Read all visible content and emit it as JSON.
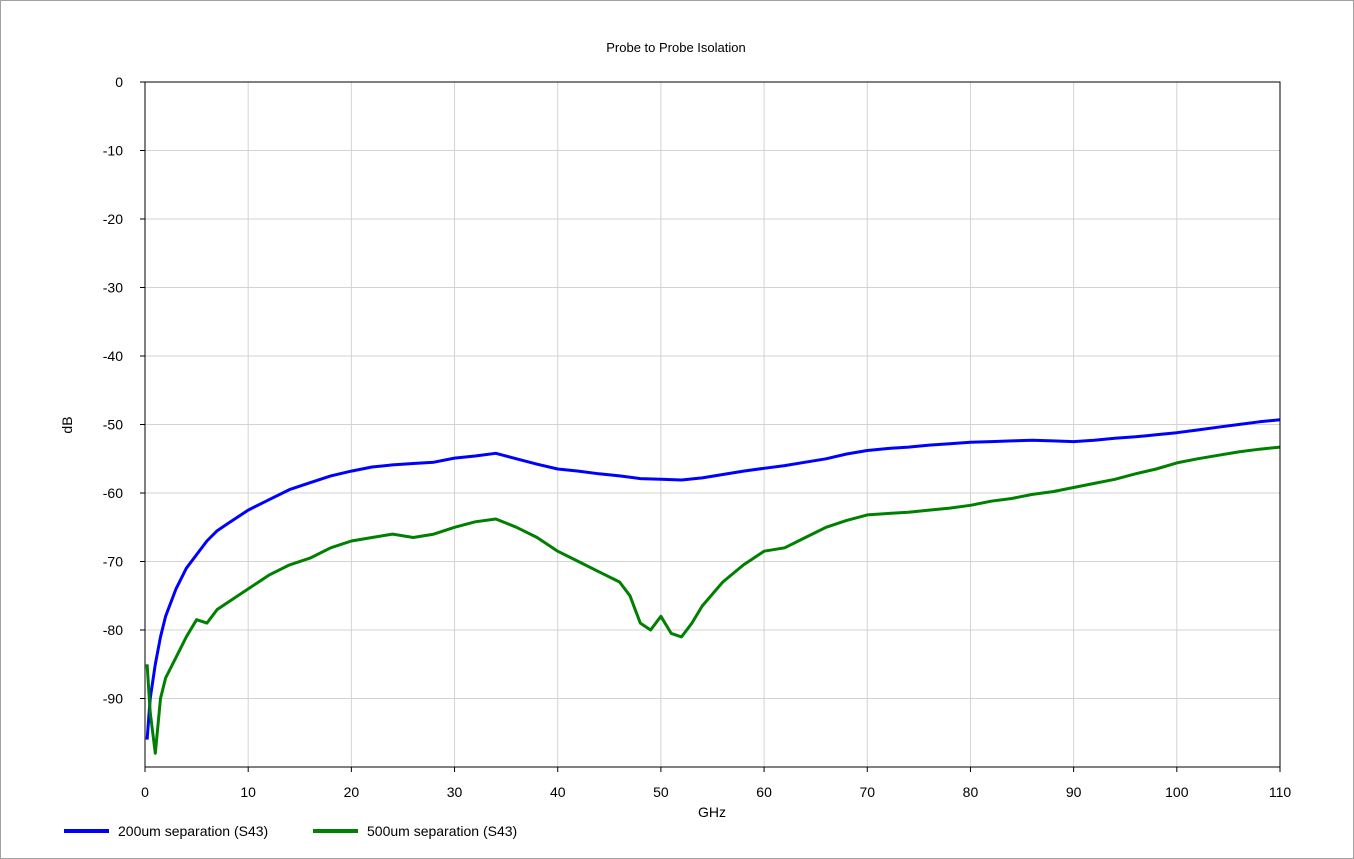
{
  "chart_data": {
    "type": "line",
    "title": "Probe to Probe Isolation",
    "xlabel": "GHz",
    "ylabel": "dB",
    "xlim": [
      0,
      110
    ],
    "ylim": [
      -100,
      0
    ],
    "xticks": [
      0,
      10,
      20,
      30,
      40,
      50,
      60,
      70,
      80,
      90,
      100,
      110
    ],
    "yticks": [
      0,
      -10,
      -20,
      -30,
      -40,
      -50,
      -60,
      -70,
      -80,
      -90
    ],
    "grid": true,
    "legend_position": "bottom-left",
    "series": [
      {
        "name": "200um separation (S43)",
        "color": "#0000ff",
        "x": [
          0.2,
          0.5,
          1,
          1.5,
          2,
          3,
          4,
          5,
          6,
          7,
          8,
          10,
          12,
          14,
          16,
          18,
          20,
          22,
          24,
          26,
          28,
          30,
          32,
          34,
          36,
          38,
          40,
          42,
          44,
          46,
          48,
          50,
          52,
          54,
          56,
          58,
          60,
          62,
          64,
          66,
          68,
          70,
          72,
          74,
          76,
          78,
          80,
          82,
          84,
          86,
          88,
          90,
          92,
          94,
          96,
          98,
          100,
          102,
          104,
          106,
          108,
          110
        ],
        "y": [
          -96,
          -90,
          -85,
          -81,
          -78,
          -74,
          -71,
          -69,
          -67,
          -65.5,
          -64.5,
          -62.5,
          -61,
          -59.5,
          -58.5,
          -57.5,
          -56.8,
          -56.2,
          -55.9,
          -55.7,
          -55.5,
          -54.9,
          -54.6,
          -54.2,
          -55,
          -55.8,
          -56.5,
          -56.8,
          -57.2,
          -57.5,
          -57.9,
          -58,
          -58.1,
          -57.8,
          -57.3,
          -56.8,
          -56.4,
          -56,
          -55.5,
          -55,
          -54.3,
          -53.8,
          -53.5,
          -53.3,
          -53,
          -52.8,
          -52.6,
          -52.5,
          -52.4,
          -52.3,
          -52.4,
          -52.5,
          -52.3,
          -52,
          -51.8,
          -51.5,
          -51.2,
          -50.8,
          -50.4,
          -50,
          -49.6,
          -49.3
        ]
      },
      {
        "name": "500um separation (S43)",
        "color": "#008000",
        "x": [
          0.2,
          0.5,
          1,
          1.5,
          2,
          3,
          4,
          5,
          6,
          7,
          8,
          10,
          12,
          14,
          16,
          18,
          20,
          22,
          24,
          26,
          28,
          30,
          32,
          34,
          36,
          38,
          40,
          42,
          44,
          46,
          47,
          48,
          49,
          50,
          51,
          52,
          53,
          54,
          56,
          58,
          60,
          62,
          64,
          66,
          68,
          70,
          72,
          74,
          76,
          78,
          80,
          82,
          84,
          86,
          88,
          90,
          92,
          94,
          96,
          98,
          100,
          102,
          104,
          106,
          108,
          110
        ],
        "y": [
          -85,
          -92,
          -98,
          -90,
          -87,
          -84,
          -81,
          -78.5,
          -79,
          -77,
          -76,
          -74,
          -72,
          -70.5,
          -69.5,
          -68,
          -67,
          -66.5,
          -66,
          -66.5,
          -66,
          -65,
          -64.2,
          -63.8,
          -65,
          -66.5,
          -68.5,
          -70,
          -71.5,
          -73,
          -75,
          -79,
          -80,
          -78,
          -80.5,
          -81,
          -79,
          -76.5,
          -73,
          -70.5,
          -68.5,
          -68,
          -66.5,
          -65,
          -64,
          -63.2,
          -63,
          -62.8,
          -62.5,
          -62.2,
          -61.8,
          -61.2,
          -60.8,
          -60.2,
          -59.8,
          -59.2,
          -58.6,
          -58,
          -57.2,
          -56.5,
          -55.6,
          -55,
          -54.5,
          -54,
          -53.6,
          -53.3
        ]
      }
    ]
  }
}
